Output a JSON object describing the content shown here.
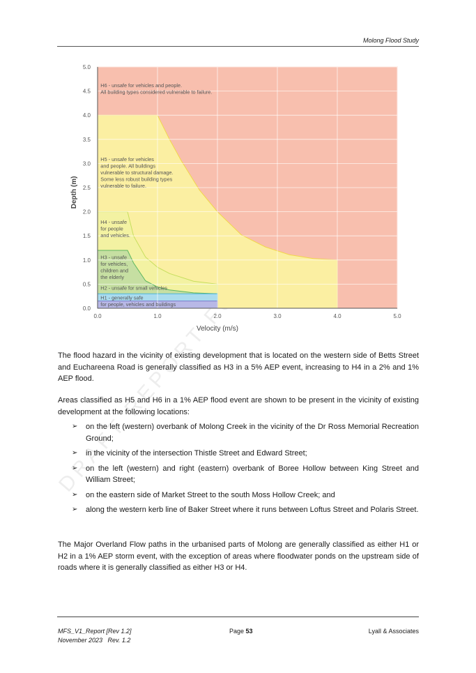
{
  "header": {
    "title": "Molong Flood Study"
  },
  "watermark": "DRAFT REPORT FOR",
  "chart_data": {
    "type": "area",
    "title": "",
    "xlabel": "Velocity (m/s)",
    "ylabel": "Depth (m)",
    "xlim": [
      0,
      5
    ],
    "ylim": [
      0,
      5
    ],
    "xticks": [
      "0.0",
      "1.0",
      "2.0",
      "3.0",
      "4.0",
      "5.0"
    ],
    "yticks": [
      "0.0",
      "0.5",
      "1.0",
      "1.5",
      "2.0",
      "2.5",
      "3.0",
      "3.5",
      "4.0",
      "4.5",
      "5.0"
    ],
    "grid": true,
    "regions": [
      {
        "name": "H6",
        "color": "#f8bfae",
        "stroke": "#f8bfae",
        "labels": [
          "H6 - unsafe for vehicles and people.",
          "All building types considered vulnerable to failure."
        ],
        "label_at": [
          0.05,
          4.58
        ],
        "boundary": [
          [
            0,
            0
          ],
          [
            5,
            0
          ],
          [
            5,
            5
          ],
          [
            0,
            5
          ]
        ]
      },
      {
        "name": "H5",
        "color": "#fbefa2",
        "stroke": "#f2d64b",
        "labels": [
          "H5 - unsafe for vehicles",
          "and people. All buildings",
          "vulnerable to structural damage.",
          "Some less robust building types",
          "vulnerable to failure."
        ],
        "label_at": [
          0.05,
          3.05
        ],
        "boundary": [
          [
            0,
            0
          ],
          [
            4,
            0
          ],
          [
            4,
            1
          ],
          [
            3.6,
            1.03
          ],
          [
            3.2,
            1.11
          ],
          [
            2.8,
            1.27
          ],
          [
            2.4,
            1.52
          ],
          [
            2,
            2
          ],
          [
            1.7,
            2.45
          ],
          [
            1.4,
            3.05
          ],
          [
            1.2,
            3.5
          ],
          [
            1,
            4
          ],
          [
            0,
            4
          ]
        ]
      },
      {
        "name": "H4",
        "color": "#f3f2a2",
        "stroke": "#c6de5c",
        "labels": [
          "H4 - unsafe",
          "for people",
          "and vehicles."
        ],
        "label_at": [
          0.05,
          1.75
        ],
        "boundary": [
          [
            0,
            0
          ],
          [
            2,
            0
          ],
          [
            2,
            0.5
          ],
          [
            1.6,
            0.56
          ],
          [
            1.2,
            0.72
          ],
          [
            1,
            0.85
          ],
          [
            0.8,
            1.06
          ],
          [
            0.6,
            1.5
          ],
          [
            0.5,
            2
          ],
          [
            0,
            2
          ]
        ]
      },
      {
        "name": "H3",
        "color": "#c6dfa2",
        "stroke": "#5cb65f",
        "labels": [
          "H3 - unsafe",
          "for vehicles,",
          "children and",
          "the elderly"
        ],
        "label_at": [
          0.05,
          1.02
        ],
        "boundary": [
          [
            0,
            0
          ],
          [
            2,
            0
          ],
          [
            2,
            0.3
          ],
          [
            1.6,
            0.32
          ],
          [
            1.2,
            0.38
          ],
          [
            1,
            0.44
          ],
          [
            0.8,
            0.57
          ],
          [
            0.6,
            0.94
          ],
          [
            0.5,
            1.2
          ],
          [
            0,
            1.2
          ]
        ]
      },
      {
        "name": "H2",
        "color": "#aadcee",
        "stroke": "#4cb4d8",
        "labels": [
          "H2 - unsafe for small vehicles"
        ],
        "label_at": [
          0.05,
          0.38
        ],
        "boundary": [
          [
            0,
            0
          ],
          [
            2,
            0
          ],
          [
            2,
            0.3
          ],
          [
            0,
            0.3
          ]
        ]
      },
      {
        "name": "H1",
        "color": "#b8b8e6",
        "stroke": "#7a7acb",
        "labels": [
          "H1 - generally safe",
          "for people, vehicles and buildings"
        ],
        "label_at": [
          0.05,
          0.18
        ],
        "boundary": [
          [
            0,
            0
          ],
          [
            2,
            0
          ],
          [
            2,
            0.15
          ],
          [
            1.6,
            0.15
          ],
          [
            1.2,
            0.15
          ],
          [
            1,
            0.15
          ],
          [
            0.4,
            0.15
          ],
          [
            0,
            0.15
          ]
        ]
      }
    ]
  },
  "body": {
    "para1": "The flood hazard in the vicinity of existing development that is located on the western side of Betts Street and Euchareena Road is generally classified as H3 in a 5% AEP event, increasing to H4 in a 2% and 1% AEP flood.",
    "para2": "Areas classified as H5 and H6 in a 1% AEP flood event are shown to be present in the vicinity of existing development at the following locations:",
    "bullet_symbol": "➢",
    "bullets": [
      "on the left (western) overbank of Molong Creek in the vicinity of the Dr Ross Memorial Recreation Ground;",
      "in the vicinity of the intersection Thistle Street and Edward Street;",
      "on the left (western) and right (eastern) overbank of Boree Hollow between King Street and William Street;",
      "on the eastern side of Market Street to the south Moss Hollow Creek; and",
      "along the western kerb line of Baker Street where it runs between Loftus Street and Polaris Street."
    ],
    "para3": "The Major Overland Flow paths in the urbanised parts of Molong are generally classified as either H1 or H2 in a 1% AEP storm event, with the exception of areas where floodwater ponds on the upstream side of roads where it is generally classified as either H3 or H4."
  },
  "footer": {
    "report_id": "MFS_V1_Report [Rev 1.2]",
    "date_rev": "November 2023   Rev. 1.2",
    "page_label": "Page",
    "page_number": "53",
    "company": "Lyall & Associates"
  }
}
